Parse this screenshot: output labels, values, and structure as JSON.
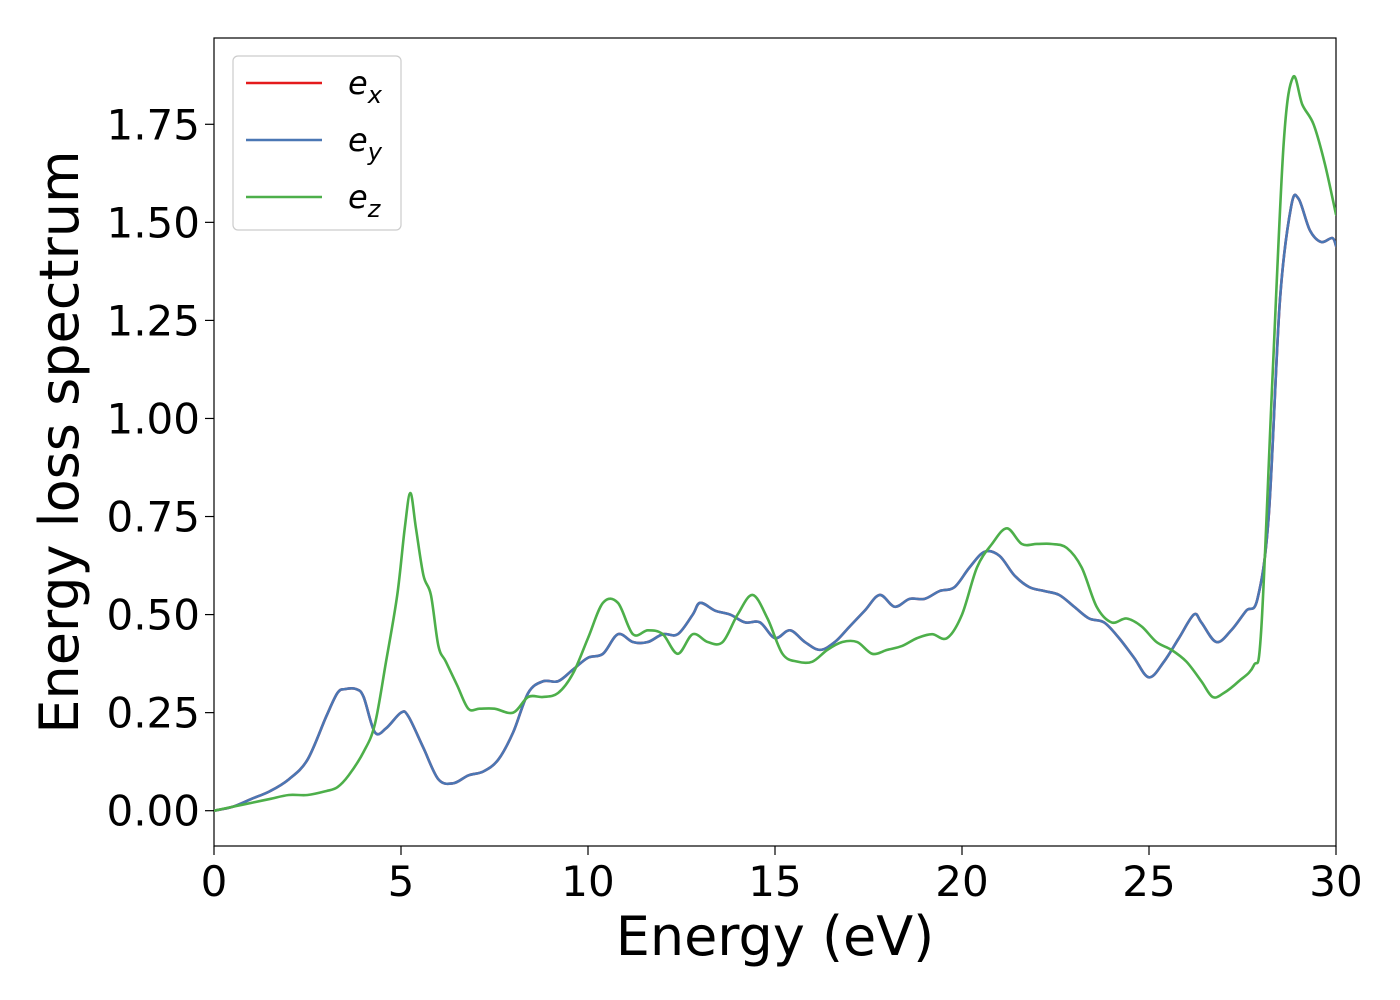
{
  "chart_data": {
    "type": "line",
    "title": "",
    "xlabel": "Energy (eV)",
    "ylabel": "Energy loss spectrum",
    "xlim": [
      0,
      30
    ],
    "ylim": [
      -0.09,
      1.97
    ],
    "xticks": [
      0,
      5,
      10,
      15,
      20,
      25,
      30
    ],
    "xtick_labels": [
      "0",
      "5",
      "10",
      "15",
      "20",
      "25",
      "30"
    ],
    "yticks": [
      0,
      0.25,
      0.5,
      0.75,
      1.0,
      1.25,
      1.5,
      1.75
    ],
    "ytick_labels": [
      "0.00",
      "0.25",
      "0.50",
      "0.75",
      "1.00",
      "1.25",
      "1.50",
      "1.75"
    ],
    "grid": false,
    "legend_position": "upper-left",
    "series": [
      {
        "name": "e_x",
        "label_base": "e",
        "label_sub": "x",
        "color": "#e41a1c",
        "x": [
          0,
          0.5,
          1,
          1.5,
          2,
          2.5,
          3,
          3.3,
          3.5,
          3.8,
          4.0,
          4.3,
          4.6,
          5.0,
          5.2,
          5.6,
          6.0,
          6.4,
          6.8,
          7.2,
          7.6,
          8.0,
          8.4,
          8.8,
          9.2,
          9.6,
          10.0,
          10.4,
          10.8,
          11.2,
          11.6,
          12.0,
          12.4,
          12.8,
          13.0,
          13.4,
          13.8,
          14.2,
          14.6,
          15.0,
          15.4,
          15.8,
          16.2,
          16.6,
          17.0,
          17.4,
          17.8,
          18.2,
          18.6,
          19.0,
          19.4,
          19.8,
          20.2,
          20.6,
          21.0,
          21.4,
          21.8,
          22.2,
          22.6,
          23.0,
          23.4,
          23.8,
          24.2,
          24.6,
          25.0,
          25.4,
          25.8,
          26.2,
          26.4,
          26.8,
          27.2,
          27.6,
          27.9,
          28.2,
          28.5,
          28.8,
          29.0,
          29.3,
          29.6,
          29.9,
          30
        ],
        "y": [
          0.0,
          0.01,
          0.03,
          0.05,
          0.08,
          0.13,
          0.24,
          0.3,
          0.31,
          0.31,
          0.29,
          0.2,
          0.21,
          0.25,
          0.24,
          0.16,
          0.08,
          0.07,
          0.09,
          0.1,
          0.13,
          0.2,
          0.3,
          0.33,
          0.33,
          0.36,
          0.39,
          0.4,
          0.45,
          0.43,
          0.43,
          0.45,
          0.45,
          0.5,
          0.53,
          0.51,
          0.5,
          0.48,
          0.48,
          0.44,
          0.46,
          0.43,
          0.41,
          0.43,
          0.47,
          0.51,
          0.55,
          0.52,
          0.54,
          0.54,
          0.56,
          0.57,
          0.62,
          0.66,
          0.65,
          0.6,
          0.57,
          0.56,
          0.55,
          0.52,
          0.49,
          0.48,
          0.44,
          0.39,
          0.34,
          0.38,
          0.44,
          0.5,
          0.48,
          0.43,
          0.46,
          0.51,
          0.54,
          0.75,
          1.3,
          1.54,
          1.56,
          1.48,
          1.45,
          1.46,
          1.44
        ]
      },
      {
        "name": "e_y",
        "label_base": "e",
        "label_sub": "y",
        "color": "#4a77b4",
        "x": [
          0,
          0.5,
          1,
          1.5,
          2,
          2.5,
          3,
          3.3,
          3.5,
          3.8,
          4.0,
          4.3,
          4.6,
          5.0,
          5.2,
          5.6,
          6.0,
          6.4,
          6.8,
          7.2,
          7.6,
          8.0,
          8.4,
          8.8,
          9.2,
          9.6,
          10.0,
          10.4,
          10.8,
          11.2,
          11.6,
          12.0,
          12.4,
          12.8,
          13.0,
          13.4,
          13.8,
          14.2,
          14.6,
          15.0,
          15.4,
          15.8,
          16.2,
          16.6,
          17.0,
          17.4,
          17.8,
          18.2,
          18.6,
          19.0,
          19.4,
          19.8,
          20.2,
          20.6,
          21.0,
          21.4,
          21.8,
          22.2,
          22.6,
          23.0,
          23.4,
          23.8,
          24.2,
          24.6,
          25.0,
          25.4,
          25.8,
          26.2,
          26.4,
          26.8,
          27.2,
          27.6,
          27.9,
          28.2,
          28.5,
          28.8,
          29.0,
          29.3,
          29.6,
          29.9,
          30
        ],
        "y": [
          0.0,
          0.01,
          0.03,
          0.05,
          0.08,
          0.13,
          0.24,
          0.3,
          0.31,
          0.31,
          0.29,
          0.2,
          0.21,
          0.25,
          0.24,
          0.16,
          0.08,
          0.07,
          0.09,
          0.1,
          0.13,
          0.2,
          0.3,
          0.33,
          0.33,
          0.36,
          0.39,
          0.4,
          0.45,
          0.43,
          0.43,
          0.45,
          0.45,
          0.5,
          0.53,
          0.51,
          0.5,
          0.48,
          0.48,
          0.44,
          0.46,
          0.43,
          0.41,
          0.43,
          0.47,
          0.51,
          0.55,
          0.52,
          0.54,
          0.54,
          0.56,
          0.57,
          0.62,
          0.66,
          0.65,
          0.6,
          0.57,
          0.56,
          0.55,
          0.52,
          0.49,
          0.48,
          0.44,
          0.39,
          0.34,
          0.38,
          0.44,
          0.5,
          0.48,
          0.43,
          0.46,
          0.51,
          0.54,
          0.75,
          1.3,
          1.54,
          1.56,
          1.48,
          1.45,
          1.46,
          1.44
        ]
      },
      {
        "name": "e_z",
        "label_base": "e",
        "label_sub": "z",
        "color": "#4daf4a",
        "x": [
          0,
          0.5,
          1,
          1.5,
          2,
          2.5,
          3,
          3.3,
          3.6,
          4.0,
          4.3,
          4.6,
          4.9,
          5.1,
          5.25,
          5.4,
          5.6,
          5.8,
          6.0,
          6.2,
          6.5,
          6.8,
          7.1,
          7.5,
          8.0,
          8.4,
          8.8,
          9.2,
          9.6,
          10.0,
          10.4,
          10.8,
          11.2,
          11.6,
          12.0,
          12.4,
          12.8,
          13.2,
          13.6,
          14.0,
          14.4,
          14.8,
          15.2,
          15.6,
          16.0,
          16.4,
          16.8,
          17.2,
          17.6,
          18.0,
          18.4,
          18.8,
          19.2,
          19.6,
          20.0,
          20.4,
          20.8,
          21.2,
          21.6,
          22.0,
          22.4,
          22.8,
          23.2,
          23.6,
          24.0,
          24.4,
          24.8,
          25.2,
          25.6,
          26.0,
          26.4,
          26.7,
          27.0,
          27.4,
          27.8,
          28.0,
          28.3,
          28.6,
          28.85,
          29.1,
          29.4,
          29.7,
          30
        ],
        "y": [
          0.0,
          0.01,
          0.02,
          0.03,
          0.04,
          0.04,
          0.05,
          0.06,
          0.09,
          0.15,
          0.22,
          0.38,
          0.55,
          0.72,
          0.81,
          0.72,
          0.6,
          0.55,
          0.42,
          0.38,
          0.32,
          0.26,
          0.26,
          0.26,
          0.25,
          0.29,
          0.29,
          0.3,
          0.35,
          0.44,
          0.53,
          0.53,
          0.45,
          0.46,
          0.45,
          0.4,
          0.45,
          0.43,
          0.43,
          0.5,
          0.55,
          0.49,
          0.4,
          0.38,
          0.38,
          0.41,
          0.43,
          0.43,
          0.4,
          0.41,
          0.42,
          0.44,
          0.45,
          0.44,
          0.5,
          0.62,
          0.68,
          0.72,
          0.68,
          0.68,
          0.68,
          0.67,
          0.62,
          0.52,
          0.48,
          0.49,
          0.47,
          0.43,
          0.41,
          0.38,
          0.33,
          0.29,
          0.3,
          0.33,
          0.37,
          0.46,
          1.1,
          1.7,
          1.87,
          1.8,
          1.75,
          1.65,
          1.52
        ]
      }
    ]
  }
}
